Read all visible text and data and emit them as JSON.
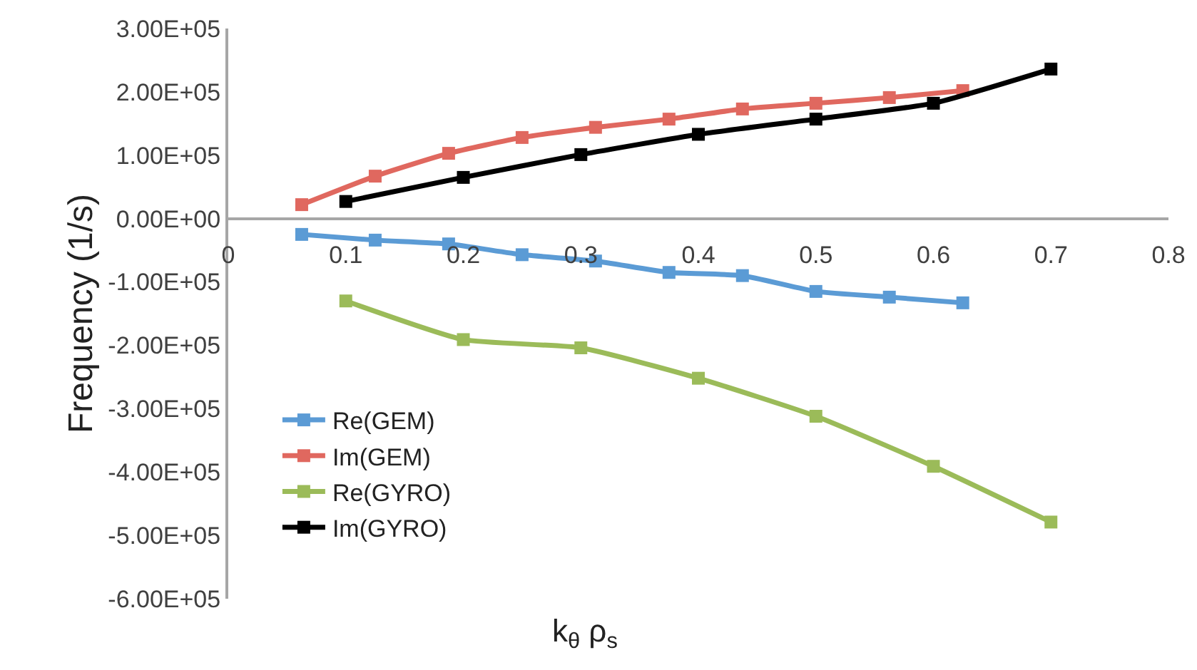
{
  "chart_data": {
    "type": "line",
    "xlabel": "k$_{θ}$ ρ$_{s}$",
    "ylabel": "Frequency (1/s)",
    "xlim": [
      0,
      0.8
    ],
    "xticks": [
      0,
      0.1,
      0.2,
      0.3,
      0.4,
      0.5,
      0.6,
      0.7,
      0.8
    ],
    "ylim": [
      -600000,
      300000
    ],
    "yticks": [
      {
        "value": -600000,
        "label": "-6.00E+05"
      },
      {
        "value": -500000,
        "label": "-5.00E+05"
      },
      {
        "value": -400000,
        "label": "-4.00E+05"
      },
      {
        "value": -300000,
        "label": "-3.00E+05"
      },
      {
        "value": -200000,
        "label": "-2.00E+05"
      },
      {
        "value": -100000,
        "label": "-1.00E+05"
      },
      {
        "value": 0,
        "label": "0.00E+00"
      },
      {
        "value": 100000,
        "label": "1.00E+05"
      },
      {
        "value": 200000,
        "label": "2.00E+05"
      },
      {
        "value": 300000,
        "label": "3.00E+05"
      }
    ],
    "grid": false,
    "legend": "bottom left",
    "marker": "square",
    "line_style": "solid",
    "series": [
      {
        "name": "Re(GEM)",
        "color": "#5b9bd5",
        "x": [
          0.0625,
          0.125,
          0.1875,
          0.25,
          0.3125,
          0.375,
          0.4375,
          0.5,
          0.5625,
          0.625
        ],
        "values": [
          -25000,
          -34000,
          -40000,
          -57000,
          -67000,
          -85000,
          -90000,
          -115000,
          -124000,
          -133000
        ]
      },
      {
        "name": "Im(GEM)",
        "color": "#e0685f",
        "x": [
          0.0625,
          0.125,
          0.1875,
          0.25,
          0.3125,
          0.375,
          0.4375,
          0.5,
          0.5625,
          0.625
        ],
        "values": [
          22000,
          67000,
          103000,
          128000,
          144000,
          157000,
          173000,
          182000,
          191000,
          202000
        ]
      },
      {
        "name": "Re(GYRO)",
        "color": "#9bbb59",
        "x": [
          0.1,
          0.2,
          0.3,
          0.4,
          0.5,
          0.6,
          0.7
        ],
        "values": [
          -130000,
          -191000,
          -204000,
          -252000,
          -312000,
          -391000,
          -479000
        ]
      },
      {
        "name": "Im(GYRO)",
        "color": "#000000",
        "x": [
          0.1,
          0.2,
          0.3,
          0.4,
          0.5,
          0.6,
          0.7
        ],
        "values": [
          27000,
          65000,
          101000,
          133000,
          157000,
          182000,
          236000
        ]
      }
    ]
  }
}
